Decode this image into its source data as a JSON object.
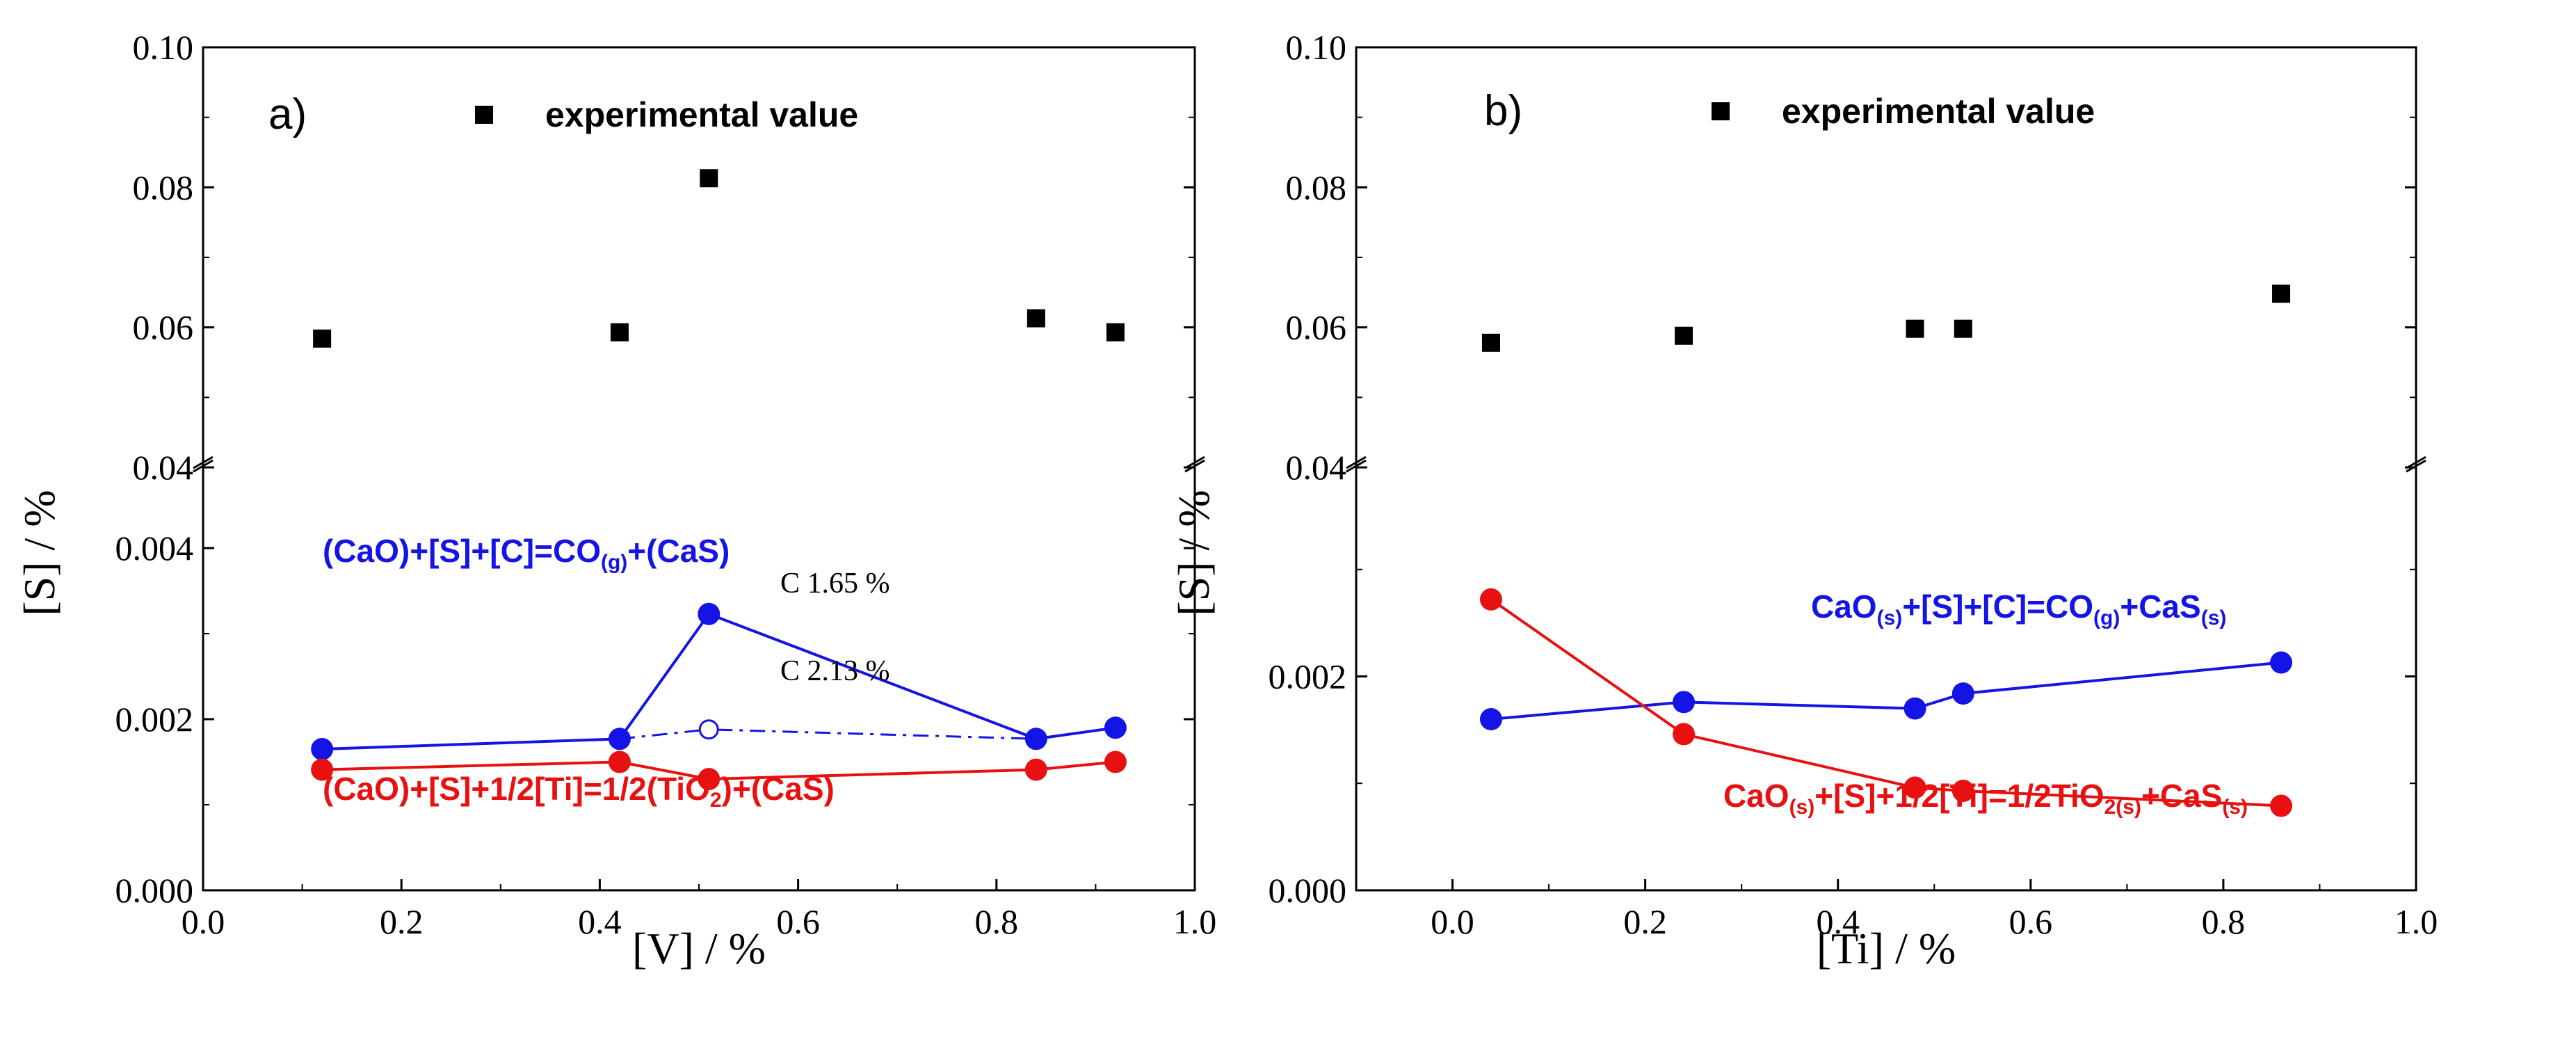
{
  "colors": {
    "blue": "#1414e6",
    "red": "#e81010",
    "black": "#000000"
  },
  "chart_data": [
    {
      "type": "scatter",
      "panel_label": "a)",
      "xlabel": "[V] / %",
      "ylabel": "[S] / %",
      "xlim": [
        0.0,
        1.0
      ],
      "x_ticks": [
        "0.0",
        "0.2",
        "0.4",
        "0.6",
        "0.8",
        "1.0"
      ],
      "y_broken": true,
      "y_lower_range": [
        0.0,
        0.005
      ],
      "y_upper_range": [
        0.04,
        0.1
      ],
      "y_ticks_lower": [
        "0.000",
        "0.002",
        "0.004"
      ],
      "y_ticks_upper": [
        "0.04",
        "0.06",
        "0.08",
        "0.10"
      ],
      "legend": {
        "label": "experimental value",
        "placement": "top"
      },
      "series": [
        {
          "name": "experimental value",
          "kind": "marker-square",
          "color": "#000000",
          "x": [
            0.12,
            0.42,
            0.51,
            0.84,
            0.92
          ],
          "y": [
            0.0584,
            0.0593,
            0.0813,
            0.0613,
            0.0593
          ]
        },
        {
          "name": "(CaO)+[S]+[C]=CO(g)+(CaS)",
          "kind": "line-marker",
          "color": "#1414e6",
          "x": [
            0.12,
            0.42,
            0.51,
            0.84,
            0.92
          ],
          "y": [
            0.00165,
            0.00177,
            0.00323,
            0.00177,
            0.0019
          ]
        },
        {
          "name": "C 2.13 %",
          "kind": "dashdot-open",
          "color": "#1414e6",
          "x": [
            0.42,
            0.51,
            0.84
          ],
          "y": [
            0.00177,
            0.00188,
            0.00177
          ]
        },
        {
          "name": "(CaO)+[S]+1/2[Ti]=1/2(TiO2)+(CaS)",
          "kind": "line-marker",
          "color": "#e81010",
          "x": [
            0.12,
            0.42,
            0.51,
            0.84,
            0.92
          ],
          "y": [
            0.00141,
            0.0015,
            0.0013,
            0.00141,
            0.0015
          ]
        }
      ],
      "annotations": [
        {
          "text": "C 1.65 %",
          "x": 0.51,
          "y": 0.00323
        },
        {
          "text": "C 2.13 %",
          "x": 0.51,
          "y": 0.00188
        }
      ],
      "equations": {
        "blue": [
          "(CaO)+[S]+[C]=CO",
          "(g)",
          "+(CaS)"
        ],
        "red": [
          "(CaO)+[S]+1/2[Ti]=1/2(TiO",
          "2",
          ")+(CaS)"
        ]
      }
    },
    {
      "type": "scatter",
      "panel_label": "b)",
      "xlabel": "[Ti] / %",
      "ylabel": "[S] / %",
      "xlim": [
        -0.1,
        1.0
      ],
      "x_ticks": [
        "0.0",
        "0.2",
        "0.4",
        "0.6",
        "0.8",
        "1.0"
      ],
      "y_broken": true,
      "y_lower_range": [
        0.0,
        0.004
      ],
      "y_upper_range": [
        0.04,
        0.1
      ],
      "y_ticks_lower": [
        "0.000",
        "0.002"
      ],
      "y_ticks_upper": [
        "0.04",
        "0.06",
        "0.08",
        "0.10"
      ],
      "legend": {
        "label": "experimental value",
        "placement": "top"
      },
      "series": [
        {
          "name": "experimental value",
          "kind": "marker-square",
          "color": "#000000",
          "x": [
            0.04,
            0.24,
            0.48,
            0.53,
            0.86
          ],
          "y": [
            0.0578,
            0.0588,
            0.0598,
            0.0598,
            0.0648
          ]
        },
        {
          "name": "CaO(s)+[S]+[C]=CO(g)+CaS(s)",
          "kind": "line-marker",
          "color": "#1414e6",
          "x": [
            0.04,
            0.24,
            0.48,
            0.53,
            0.86
          ],
          "y": [
            0.0016,
            0.00176,
            0.0017,
            0.00184,
            0.00213
          ]
        },
        {
          "name": "CaO(s)+[S]+1/2[Ti]=1/2TiO2(s)+CaS(s)",
          "kind": "line-marker",
          "color": "#e81010",
          "x": [
            0.04,
            0.24,
            0.48,
            0.53,
            0.86
          ],
          "y": [
            0.00272,
            0.00146,
            0.00096,
            0.00093,
            0.00079
          ]
        }
      ],
      "equations": {
        "blue": [
          "CaO",
          "(s)",
          "+[S]+[C]=CO",
          "(g)",
          "+CaS",
          "(s)"
        ],
        "red": [
          "CaO",
          "(s)",
          "+[S]+1/2[Ti]=1/2TiO",
          "2(s)",
          "+CaS",
          "(s)"
        ]
      }
    }
  ]
}
